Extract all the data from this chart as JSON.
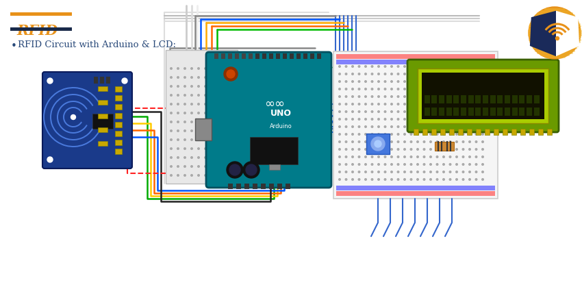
{
  "title": "RFID",
  "subtitle": "RFID Circuit with Arduino & LCD:",
  "title_color": "#E8921A",
  "title_bar_color": "#E8921A",
  "underline_color": "#1A2A4A",
  "background_color": "#FFFFFF",
  "subtitle_color": "#2A4A7A",
  "rfid_board_color": "#1A3A8A",
  "rfid_board_edge": "#0A1A5A",
  "arduino_color": "#007B8A",
  "arduino_edge": "#005060",
  "breadboard_color": "#F0F0F0",
  "breadboard_edge": "#CCCCCC",
  "lcd_outer_color": "#6A9A00",
  "lcd_screen_color": "#AACC00",
  "lcd_dark_color": "#111100",
  "logo_gold": "#E8921A",
  "logo_dark": "#1A2A5A",
  "fig_width": 8.5,
  "fig_height": 4.38,
  "dpi": 100
}
